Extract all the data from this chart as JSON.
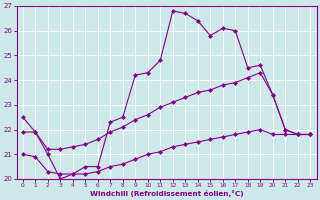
{
  "xlabel": "Windchill (Refroidissement éolien,°C)",
  "xlim": [
    -0.5,
    23.5
  ],
  "ylim": [
    20,
    27
  ],
  "yticks": [
    20,
    21,
    22,
    23,
    24,
    25,
    26,
    27
  ],
  "xticks": [
    0,
    1,
    2,
    3,
    4,
    5,
    6,
    7,
    8,
    9,
    10,
    11,
    12,
    13,
    14,
    15,
    16,
    17,
    18,
    19,
    20,
    21,
    22,
    23
  ],
  "background_color": "#cce8e8",
  "grid_color": "#ffffff",
  "line_color": "#880088",
  "line1_x": [
    0,
    1,
    2,
    3,
    4,
    5,
    6,
    7,
    8,
    9,
    10,
    11,
    12,
    13,
    14,
    15,
    16,
    17,
    18,
    19,
    20,
    21,
    22,
    23
  ],
  "line1_y": [
    22.5,
    21.9,
    21.0,
    20.0,
    20.2,
    20.5,
    20.5,
    22.3,
    22.5,
    24.2,
    24.3,
    24.8,
    26.8,
    26.7,
    26.4,
    25.8,
    26.1,
    26.0,
    24.5,
    24.6,
    23.4,
    22.0,
    21.8,
    21.8
  ],
  "line2_x": [
    0,
    1,
    2,
    3,
    4,
    5,
    6,
    7,
    8,
    9,
    10,
    11,
    12,
    13,
    14,
    15,
    16,
    17,
    18,
    19,
    20,
    21,
    22,
    23
  ],
  "line2_y": [
    21.9,
    21.9,
    21.2,
    21.2,
    21.3,
    21.4,
    21.6,
    21.9,
    22.1,
    22.4,
    22.6,
    22.9,
    23.1,
    23.3,
    23.5,
    23.6,
    23.8,
    23.9,
    24.1,
    24.3,
    23.4,
    22.0,
    21.8,
    21.8
  ],
  "line3_x": [
    0,
    1,
    2,
    3,
    4,
    5,
    6,
    7,
    8,
    9,
    10,
    11,
    12,
    13,
    14,
    15,
    16,
    17,
    18,
    19,
    20,
    21,
    22,
    23
  ],
  "line3_y": [
    21.0,
    20.9,
    20.3,
    20.2,
    20.2,
    20.2,
    20.3,
    20.5,
    20.6,
    20.8,
    21.0,
    21.1,
    21.3,
    21.4,
    21.5,
    21.6,
    21.7,
    21.8,
    21.9,
    22.0,
    21.8,
    21.8,
    21.8,
    21.8
  ]
}
